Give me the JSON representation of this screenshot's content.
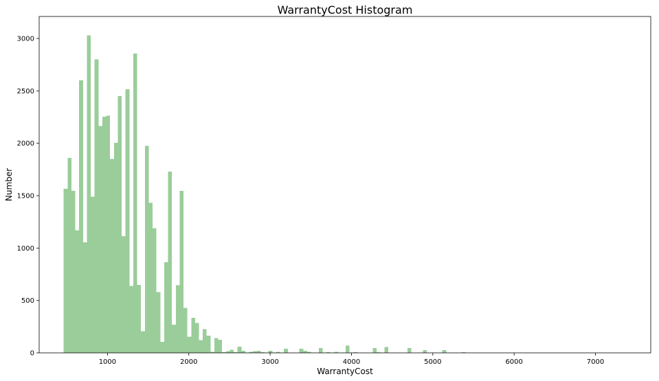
{
  "chart_data": {
    "type": "bar",
    "title": "WarrantyCost Histogram",
    "xlabel": "WarrantyCost",
    "ylabel": "Number",
    "xlim": [
      160,
      7680
    ],
    "ylim": [
      0,
      3210
    ],
    "xticks": [
      1000,
      2000,
      3000,
      4000,
      5000,
      6000,
      7000
    ],
    "yticks": [
      0,
      500,
      1000,
      1500,
      2000,
      2500,
      3000
    ],
    "bin_start": 462,
    "bin_width": 47.5,
    "bar_color": "#9acd9a",
    "grid": false,
    "legend": "none",
    "values": [
      1565,
      1860,
      1545,
      1170,
      2600,
      1055,
      3030,
      1490,
      2800,
      2165,
      2255,
      2265,
      1850,
      2005,
      2450,
      1115,
      2515,
      640,
      2855,
      650,
      205,
      1975,
      1430,
      1190,
      580,
      105,
      865,
      1730,
      270,
      645,
      1545,
      430,
      155,
      335,
      285,
      120,
      225,
      165,
      10,
      140,
      125,
      5,
      15,
      30,
      5,
      60,
      20,
      0,
      10,
      15,
      20,
      5,
      0,
      20,
      0,
      10,
      0,
      40,
      0,
      0,
      0,
      40,
      20,
      10,
      0,
      0,
      45,
      0,
      5,
      0,
      10,
      0,
      0,
      70,
      0,
      5,
      0,
      0,
      0,
      0,
      45,
      5,
      0,
      55,
      0,
      0,
      0,
      0,
      0,
      45,
      0,
      0,
      0,
      25,
      0,
      0,
      0,
      0,
      25,
      0,
      0,
      0,
      0,
      5,
      0,
      0,
      0,
      0,
      0,
      0,
      0,
      0,
      0,
      0,
      0,
      0,
      0,
      0,
      0,
      0,
      0,
      0,
      0,
      0,
      0,
      0,
      0,
      0,
      0,
      0,
      0,
      0,
      0,
      0,
      0,
      0,
      0,
      0,
      0,
      0,
      0,
      0,
      0,
      0,
      0,
      0
    ]
  }
}
